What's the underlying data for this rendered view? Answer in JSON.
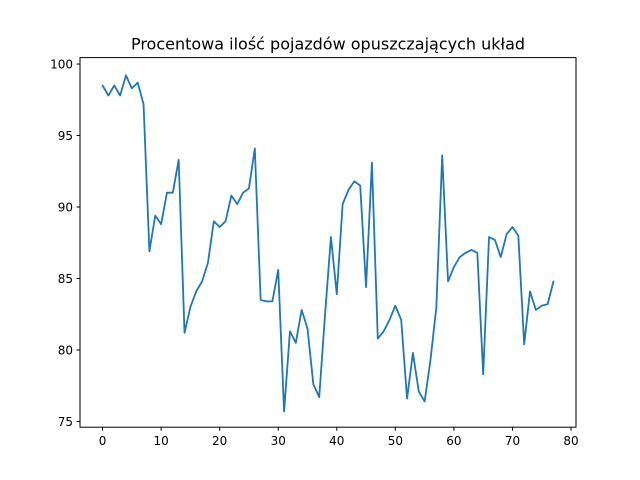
{
  "chart_data": {
    "type": "line",
    "title": "Procentowa ilość pojazdów opuszczających układ",
    "xlabel": "",
    "ylabel": "",
    "xlim": [
      -3.85,
      80.85
    ],
    "ylim": [
      74.6,
      100.45
    ],
    "x_ticks": [
      0,
      10,
      20,
      30,
      40,
      50,
      60,
      70,
      80
    ],
    "y_ticks": [
      75,
      80,
      85,
      90,
      95,
      100
    ],
    "grid": false,
    "series": [
      {
        "color": "#1f77b4",
        "x": [
          0,
          1,
          2,
          3,
          4,
          5,
          6,
          7,
          8,
          9,
          10,
          11,
          12,
          13,
          14,
          15,
          16,
          17,
          18,
          19,
          20,
          21,
          22,
          23,
          24,
          25,
          26,
          27,
          28,
          29,
          30,
          31,
          32,
          33,
          34,
          35,
          36,
          37,
          38,
          39,
          40,
          41,
          42,
          43,
          44,
          45,
          46,
          47,
          48,
          49,
          50,
          51,
          52,
          53,
          54,
          55,
          56,
          57,
          58,
          59,
          60,
          61,
          62,
          63,
          64,
          65,
          66,
          67,
          68,
          69,
          70,
          71,
          72,
          73,
          74,
          75,
          76,
          77
        ],
        "y": [
          98.5,
          97.8,
          98.5,
          97.8,
          99.2,
          98.3,
          98.7,
          97.2,
          86.9,
          89.4,
          88.8,
          91.0,
          91.0,
          93.3,
          81.2,
          83.0,
          84.1,
          84.8,
          86.1,
          89.0,
          88.6,
          89.0,
          90.8,
          90.2,
          91.0,
          91.3,
          94.1,
          83.5,
          83.4,
          83.4,
          85.6,
          75.7,
          81.3,
          80.5,
          82.8,
          81.5,
          77.6,
          76.7,
          82.5,
          87.9,
          83.9,
          90.2,
          91.2,
          91.8,
          91.5,
          84.4,
          93.1,
          80.8,
          81.3,
          82.1,
          83.1,
          82.1,
          76.6,
          79.8,
          77.1,
          76.4,
          79.3,
          83.0,
          93.6,
          84.8,
          85.8,
          86.5,
          86.8,
          87.0,
          86.8,
          78.3,
          87.9,
          87.7,
          86.5,
          88.1,
          88.6,
          88.0,
          80.4,
          84.1,
          82.8,
          83.1,
          83.2,
          84.8
        ]
      }
    ]
  }
}
